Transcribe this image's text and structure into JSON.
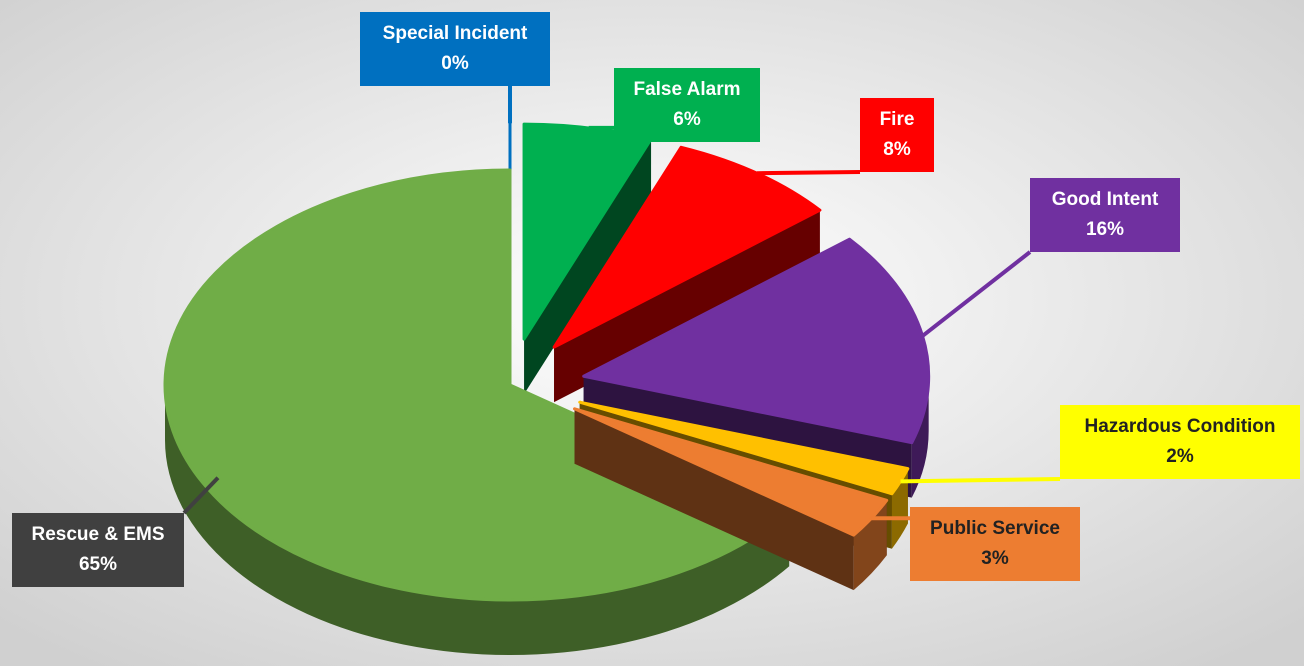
{
  "chart_data": {
    "type": "pie3d",
    "categories": [
      "Special Incident",
      "False Alarm",
      "Fire",
      "Good Intent",
      "Hazardous Condition",
      "Public Service",
      "Rescue & EMS"
    ],
    "values": [
      0,
      6,
      8,
      16,
      2,
      3,
      65
    ],
    "value_labels": [
      "0%",
      "6%",
      "8%",
      "16%",
      "2%",
      "3%",
      "65%"
    ],
    "colors": [
      "#0070c0",
      "#00b050",
      "#ff0000",
      "#7030a0",
      "#ffc000",
      "#ed7d31",
      "#70ad47"
    ],
    "label_colors": [
      "#0070c0",
      "#00b050",
      "#ff0000",
      "#7030a0",
      "#ffff00",
      "#ed7d31",
      "#404040"
    ],
    "label_text_colors": [
      "#ffffff",
      "#ffffff",
      "#ffffff",
      "#ffffff",
      "#222222",
      "#222222",
      "#ffffff"
    ]
  }
}
